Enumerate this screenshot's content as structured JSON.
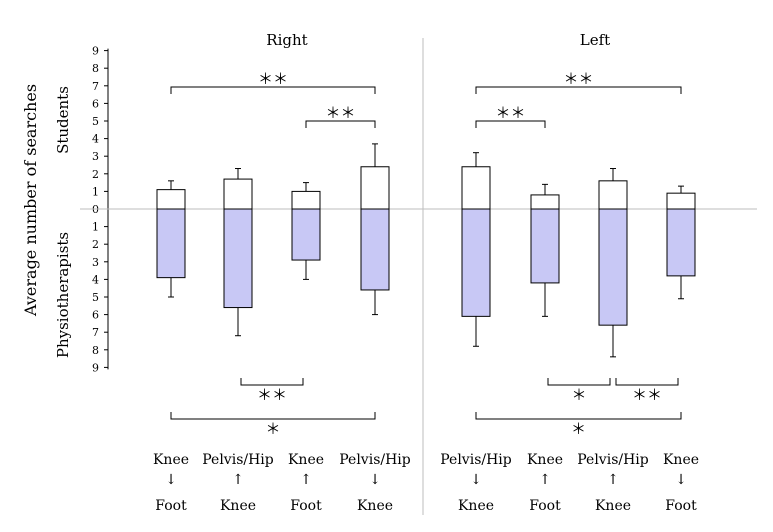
{
  "chart_data": {
    "type": "bar",
    "title": "",
    "ylabel": "Average number of searches",
    "upper_group_label": "Students",
    "lower_group_label": "Physiotherapists",
    "ylim": [
      -9,
      9
    ],
    "yticks": [
      "9",
      "8",
      "7",
      "6",
      "5",
      "4",
      "3",
      "2",
      "1",
      "0",
      "1",
      "2",
      "3",
      "4",
      "5",
      "6",
      "7",
      "8",
      "9"
    ],
    "panels": [
      {
        "name": "Right",
        "categories": [
          {
            "from": "Knee",
            "arrow": "↓",
            "to": "Foot"
          },
          {
            "from": "Pelvis/Hip",
            "arrow": "↑",
            "to": "Knee"
          },
          {
            "from": "Knee",
            "arrow": "↑",
            "to": "Foot"
          },
          {
            "from": "Pelvis/Hip",
            "arrow": "↓",
            "to": "Knee"
          }
        ],
        "series": [
          {
            "name": "Students",
            "values": [
              1.1,
              1.7,
              1.0,
              2.4
            ],
            "errors": [
              0.5,
              0.6,
              0.5,
              1.3
            ]
          },
          {
            "name": "Physiotherapists",
            "values": [
              3.9,
              5.6,
              2.9,
              4.6
            ],
            "errors": [
              1.1,
              1.6,
              1.1,
              1.4
            ]
          }
        ],
        "significance": [
          {
            "group": "upper",
            "from": 0,
            "to": 3,
            "label": "＊＊"
          },
          {
            "group": "upper",
            "from": 2,
            "to": 3,
            "label": "＊＊"
          },
          {
            "group": "lower",
            "from": 1,
            "to": 2,
            "label": "＊＊"
          },
          {
            "group": "lower",
            "from": 0,
            "to": 3,
            "label": "＊"
          }
        ]
      },
      {
        "name": "Left",
        "categories": [
          {
            "from": "Pelvis/Hip",
            "arrow": "↓",
            "to": "Knee"
          },
          {
            "from": "Knee",
            "arrow": "↑",
            "to": "Foot"
          },
          {
            "from": "Pelvis/Hip",
            "arrow": "↑",
            "to": "Knee"
          },
          {
            "from": "Knee",
            "arrow": "↓",
            "to": "Foot"
          }
        ],
        "series": [
          {
            "name": "Students",
            "values": [
              2.4,
              0.8,
              1.6,
              0.9
            ],
            "errors": [
              0.8,
              0.6,
              0.7,
              0.4
            ]
          },
          {
            "name": "Physiotherapists",
            "values": [
              6.1,
              4.2,
              6.6,
              3.8
            ],
            "errors": [
              1.7,
              1.9,
              1.8,
              1.3
            ]
          }
        ],
        "significance": [
          {
            "group": "upper",
            "from": 0,
            "to": 3,
            "label": "＊＊"
          },
          {
            "group": "upper",
            "from": 0,
            "to": 1,
            "label": "＊＊"
          },
          {
            "group": "lower",
            "from": 1,
            "to": 2,
            "label": "＊"
          },
          {
            "group": "lower",
            "from": 2,
            "to": 3,
            "label": "＊＊"
          },
          {
            "group": "lower",
            "from": 0,
            "to": 3,
            "label": "＊"
          }
        ]
      }
    ],
    "colors": {
      "students": "#ffffff",
      "physiotherapists": "#c8c8f5",
      "stroke": "#000000",
      "divider": "#bdbdbd"
    }
  }
}
